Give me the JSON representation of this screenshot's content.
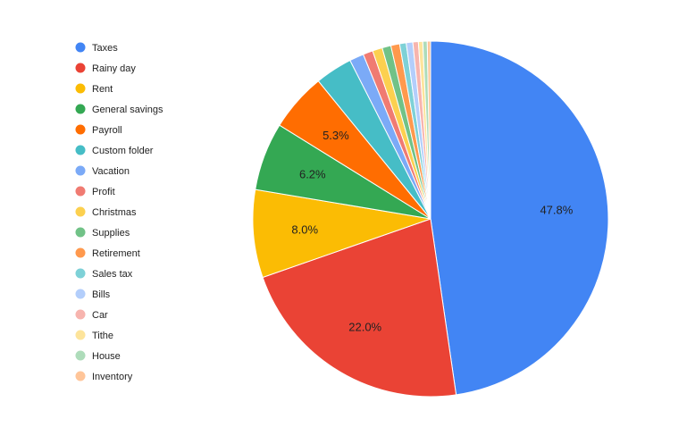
{
  "chart_data": {
    "type": "pie",
    "title": "",
    "legend_position": "left",
    "start_angle": "12 o'clock, clockwise",
    "slices": [
      {
        "label": "Taxes",
        "value": 47.8,
        "color": "#4285F4",
        "display": "47.8%"
      },
      {
        "label": "Rainy day",
        "value": 22.0,
        "color": "#EA4335",
        "display": "22.0%"
      },
      {
        "label": "Rent",
        "value": 8.0,
        "color": "#FBBC04",
        "display": "8.0%"
      },
      {
        "label": "General savings",
        "value": 6.2,
        "color": "#34A853",
        "display": "6.2%"
      },
      {
        "label": "Payroll",
        "value": 5.3,
        "color": "#FF6D01",
        "display": "5.3%"
      },
      {
        "label": "Custom folder",
        "value": 3.4,
        "color": "#46BDC6",
        "display": ""
      },
      {
        "label": "Vacation",
        "value": 1.3,
        "color": "#7BAAF7",
        "display": ""
      },
      {
        "label": "Profit",
        "value": 0.9,
        "color": "#F07B72",
        "display": ""
      },
      {
        "label": "Christmas",
        "value": 0.9,
        "color": "#FCD04F",
        "display": ""
      },
      {
        "label": "Supplies",
        "value": 0.8,
        "color": "#71C287",
        "display": ""
      },
      {
        "label": "Retirement",
        "value": 0.8,
        "color": "#FF994D",
        "display": ""
      },
      {
        "label": "Sales tax",
        "value": 0.6,
        "color": "#7ED1D7",
        "display": ""
      },
      {
        "label": "Bills",
        "value": 0.6,
        "color": "#B3CEFB",
        "display": ""
      },
      {
        "label": "Car",
        "value": 0.5,
        "color": "#F7B4AE",
        "display": ""
      },
      {
        "label": "Tithe",
        "value": 0.4,
        "color": "#FDE49B",
        "display": ""
      },
      {
        "label": "House",
        "value": 0.4,
        "color": "#AEDCBA",
        "display": ""
      },
      {
        "label": "Inventory",
        "value": 0.3,
        "color": "#FFC599",
        "display": ""
      }
    ]
  }
}
